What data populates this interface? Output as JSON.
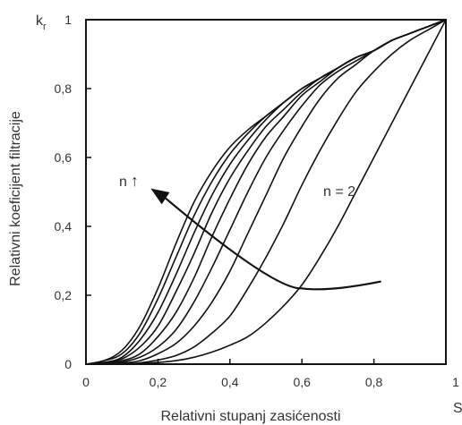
{
  "chart_data": {
    "type": "line",
    "xlabel": "Relativni stupanj zasićenosti",
    "ylabel": "Relativni koeficijent filtracije",
    "x_axis_symbol": "S",
    "y_axis_symbol": "kr",
    "y_axis_symbol_main": "k",
    "y_axis_symbol_sub": "r",
    "xlim": [
      0,
      1
    ],
    "ylim": [
      0,
      1
    ],
    "x_ticks": [
      "0",
      "0,2",
      "0,4",
      "0,6",
      "0,8",
      "1"
    ],
    "y_ticks": [
      "0",
      "0,2",
      "0,4",
      "0,6",
      "0,8",
      "1"
    ],
    "grid": false,
    "annotations": {
      "n_equals": "n = 2",
      "n_increase": "n",
      "n_increase_arrow": "↑"
    },
    "series": [
      {
        "x": [
          0,
          0.05,
          0.1,
          0.15,
          0.2,
          0.25,
          0.3,
          0.35,
          0.4,
          0.45,
          0.5,
          0.55,
          0.6,
          0.65,
          0.7,
          0.75,
          0.8,
          0.85,
          0.9,
          0.95,
          1
        ],
        "y": [
          0,
          0.01,
          0.04,
          0.11,
          0.22,
          0.35,
          0.47,
          0.56,
          0.63,
          0.68,
          0.72,
          0.76,
          0.8,
          0.83,
          0.86,
          0.89,
          0.91,
          0.94,
          0.96,
          0.98,
          1
        ]
      },
      {
        "x": [
          0,
          0.05,
          0.1,
          0.15,
          0.2,
          0.25,
          0.3,
          0.35,
          0.4,
          0.45,
          0.5,
          0.55,
          0.6,
          0.65,
          0.7,
          0.75,
          0.8,
          0.85,
          0.9,
          0.95,
          1
        ],
        "y": [
          0,
          0.01,
          0.03,
          0.09,
          0.19,
          0.31,
          0.43,
          0.53,
          0.61,
          0.67,
          0.72,
          0.76,
          0.8,
          0.83,
          0.86,
          0.89,
          0.91,
          0.94,
          0.96,
          0.98,
          1
        ]
      },
      {
        "x": [
          0,
          0.05,
          0.1,
          0.15,
          0.2,
          0.25,
          0.3,
          0.35,
          0.4,
          0.45,
          0.5,
          0.55,
          0.6,
          0.65,
          0.7,
          0.75,
          0.8,
          0.85,
          0.9,
          0.95,
          1
        ],
        "y": [
          0,
          0.005,
          0.02,
          0.07,
          0.15,
          0.26,
          0.38,
          0.49,
          0.58,
          0.65,
          0.71,
          0.76,
          0.8,
          0.83,
          0.86,
          0.89,
          0.91,
          0.94,
          0.96,
          0.98,
          1
        ]
      },
      {
        "x": [
          0,
          0.05,
          0.1,
          0.15,
          0.2,
          0.25,
          0.3,
          0.35,
          0.4,
          0.45,
          0.5,
          0.55,
          0.6,
          0.65,
          0.7,
          0.75,
          0.8,
          0.85,
          0.9,
          0.95,
          1
        ],
        "y": [
          0,
          0.003,
          0.015,
          0.05,
          0.11,
          0.21,
          0.32,
          0.44,
          0.54,
          0.62,
          0.69,
          0.74,
          0.79,
          0.83,
          0.86,
          0.89,
          0.91,
          0.94,
          0.96,
          0.98,
          1
        ]
      },
      {
        "x": [
          0,
          0.05,
          0.1,
          0.15,
          0.2,
          0.25,
          0.3,
          0.35,
          0.4,
          0.45,
          0.5,
          0.55,
          0.6,
          0.65,
          0.7,
          0.75,
          0.8,
          0.85,
          0.9,
          0.95,
          1
        ],
        "y": [
          0,
          0.002,
          0.01,
          0.03,
          0.08,
          0.15,
          0.25,
          0.37,
          0.48,
          0.58,
          0.66,
          0.72,
          0.78,
          0.82,
          0.86,
          0.89,
          0.91,
          0.94,
          0.96,
          0.98,
          1
        ]
      },
      {
        "x": [
          0,
          0.05,
          0.1,
          0.15,
          0.2,
          0.25,
          0.3,
          0.35,
          0.4,
          0.45,
          0.5,
          0.55,
          0.6,
          0.65,
          0.7,
          0.75,
          0.8,
          0.85,
          0.9,
          0.95,
          1
        ],
        "y": [
          0,
          0.001,
          0.006,
          0.02,
          0.05,
          0.1,
          0.18,
          0.28,
          0.39,
          0.5,
          0.6,
          0.68,
          0.75,
          0.81,
          0.85,
          0.88,
          0.91,
          0.94,
          0.96,
          0.98,
          1
        ]
      },
      {
        "x": [
          0,
          0.05,
          0.1,
          0.15,
          0.2,
          0.25,
          0.3,
          0.35,
          0.4,
          0.45,
          0.5,
          0.55,
          0.6,
          0.65,
          0.7,
          0.75,
          0.8,
          0.85,
          0.9,
          0.95,
          1
        ],
        "y": [
          0,
          0,
          0.003,
          0.01,
          0.03,
          0.06,
          0.11,
          0.18,
          0.27,
          0.38,
          0.49,
          0.6,
          0.69,
          0.77,
          0.83,
          0.87,
          0.91,
          0.94,
          0.96,
          0.98,
          1
        ]
      },
      {
        "x": [
          0,
          0.05,
          0.1,
          0.15,
          0.2,
          0.25,
          0.3,
          0.35,
          0.4,
          0.45,
          0.5,
          0.55,
          0.6,
          0.65,
          0.7,
          0.75,
          0.8,
          0.85,
          0.9,
          0.95,
          1
        ],
        "y": [
          0,
          0,
          0.001,
          0.004,
          0.012,
          0.025,
          0.05,
          0.09,
          0.14,
          0.22,
          0.31,
          0.41,
          0.52,
          0.62,
          0.71,
          0.79,
          0.85,
          0.9,
          0.94,
          0.97,
          1
        ]
      },
      {
        "x": [
          0,
          0.05,
          0.1,
          0.15,
          0.2,
          0.25,
          0.3,
          0.35,
          0.4,
          0.45,
          0.5,
          0.55,
          0.6,
          0.65,
          0.7,
          0.75,
          0.8,
          0.85,
          0.9,
          0.95,
          1
        ],
        "y": [
          0,
          0,
          0,
          0.002,
          0.005,
          0.01,
          0.02,
          0.035,
          0.055,
          0.08,
          0.12,
          0.17,
          0.23,
          0.31,
          0.4,
          0.5,
          0.6,
          0.7,
          0.8,
          0.9,
          1
        ]
      }
    ],
    "arrow": {
      "from": [
        0.82,
        0.24
      ],
      "via": [
        0.6,
        0.22
      ],
      "to": [
        0.18,
        0.51
      ]
    },
    "colors": {
      "line": "#111111",
      "text": "#333333"
    }
  }
}
